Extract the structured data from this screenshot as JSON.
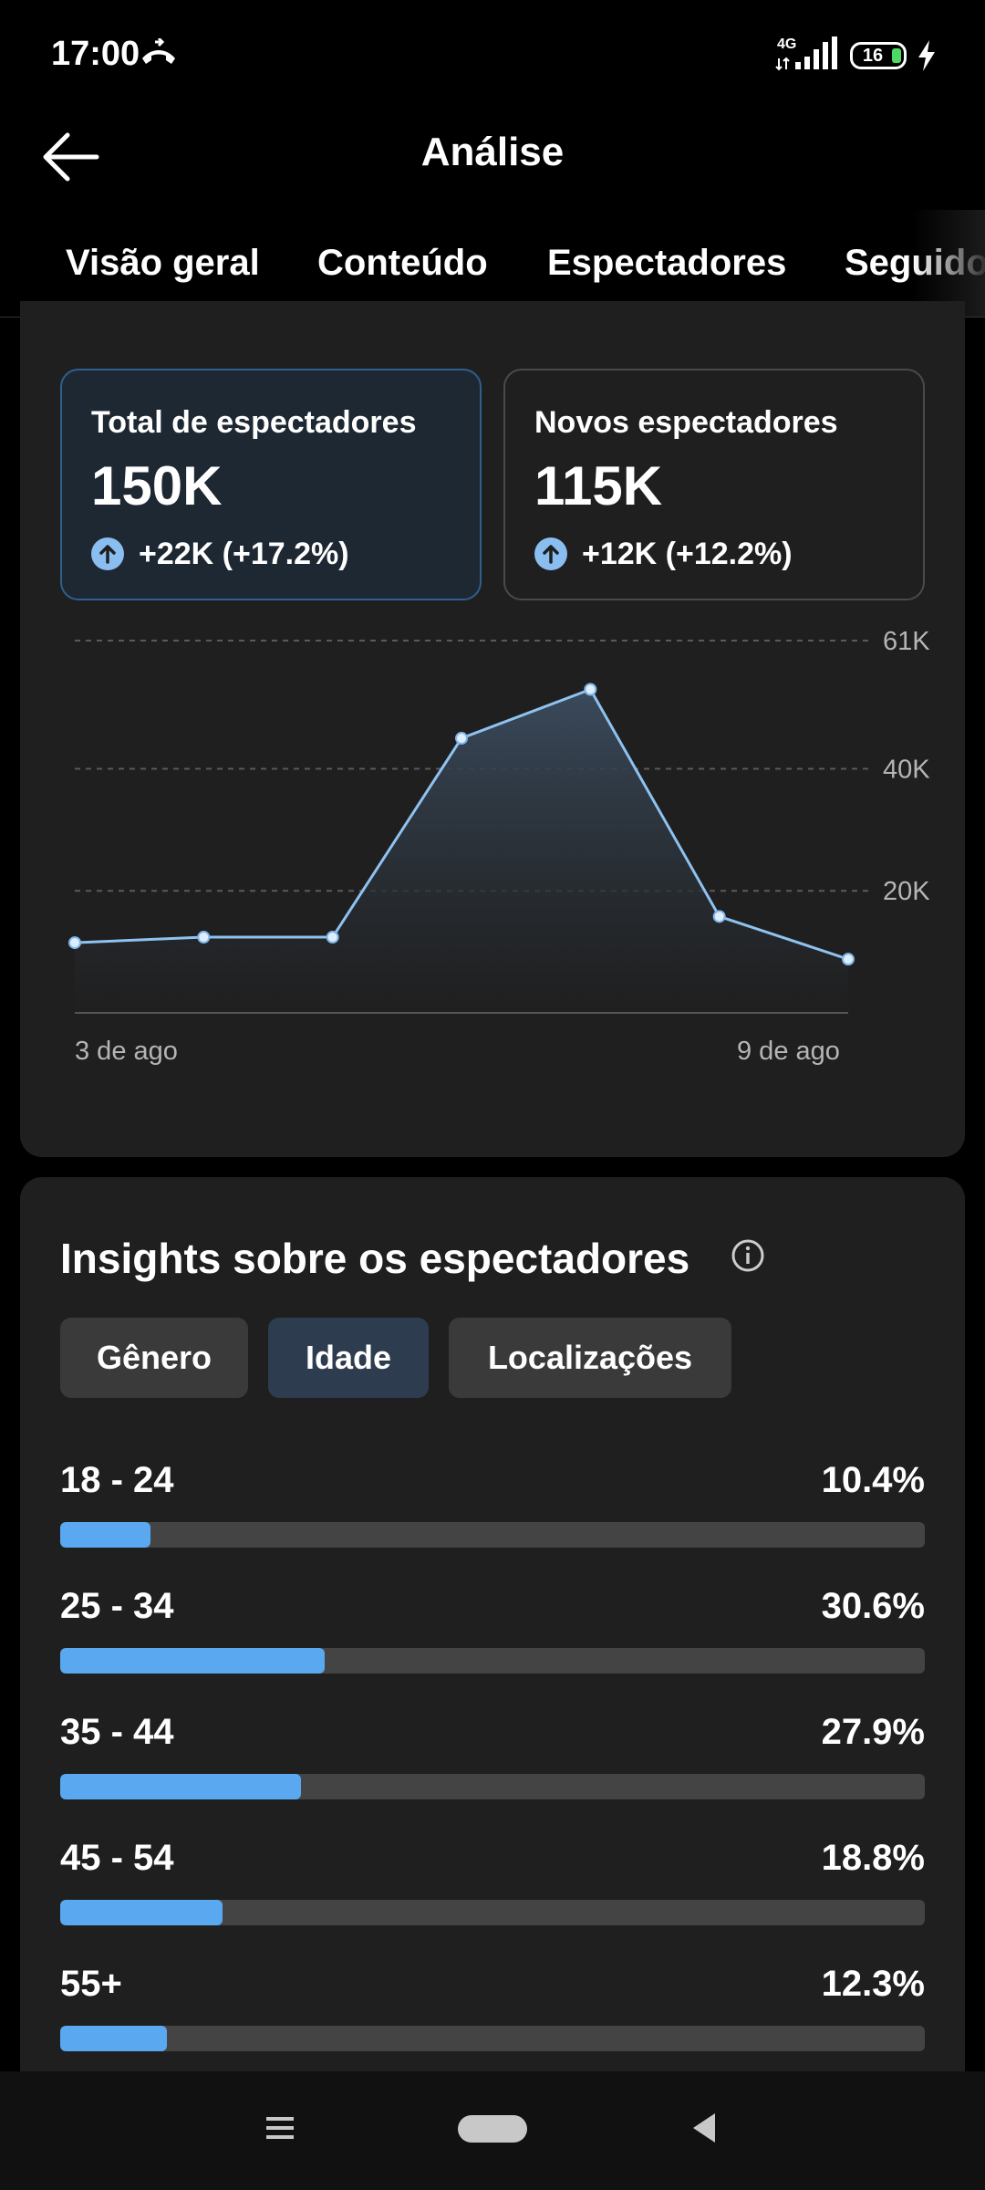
{
  "status_bar": {
    "time": "17:00",
    "network": "4G",
    "battery": "16"
  },
  "header": {
    "title": "Análise"
  },
  "tabs": [
    {
      "label": "Visão geral"
    },
    {
      "label": "Conteúdo"
    },
    {
      "label": "Espectadores",
      "active": true
    },
    {
      "label": "Seguidores"
    }
  ],
  "metrics": [
    {
      "label": "Total de espectadores",
      "value": "150K",
      "change": "+22K (+17.2%)",
      "selected": true
    },
    {
      "label": "Novos espectadores",
      "value": "115K",
      "change": "+12K (+12.2%)",
      "selected": false
    }
  ],
  "chart_data": {
    "type": "area",
    "x_tick_labels": [
      "3 de ago",
      "9 de ago"
    ],
    "y_tick_labels": [
      "20K",
      "40K",
      "61K"
    ],
    "y_ticks": [
      20000,
      40000,
      61000
    ],
    "ylim": [
      0,
      61000
    ],
    "grid": true,
    "series": [
      {
        "values": [
          11500,
          12400,
          12400,
          45000,
          53000,
          15800,
          8800
        ]
      }
    ],
    "colors": {
      "line": "#8ec2f0",
      "fill_top": "#3a4a5c",
      "fill_bottom": "#1f1f1f"
    }
  },
  "insights": {
    "title": "Insights sobre os espectadores",
    "filters": [
      {
        "label": "Gênero"
      },
      {
        "label": "Idade",
        "selected": true
      },
      {
        "label": "Localizações"
      }
    ],
    "age_groups": [
      {
        "label": "18 - 24",
        "value": "10.4%",
        "fraction": 0.104
      },
      {
        "label": "25 - 34",
        "value": "30.6%",
        "fraction": 0.306
      },
      {
        "label": "35 - 44",
        "value": "27.9%",
        "fraction": 0.279
      },
      {
        "label": "45 - 54",
        "value": "18.8%",
        "fraction": 0.188
      },
      {
        "label": "55+",
        "value": "12.3%",
        "fraction": 0.123
      }
    ]
  },
  "colors": {
    "accent": "#5aa8f0",
    "background": "#000000",
    "card": "#1f1f1f"
  }
}
